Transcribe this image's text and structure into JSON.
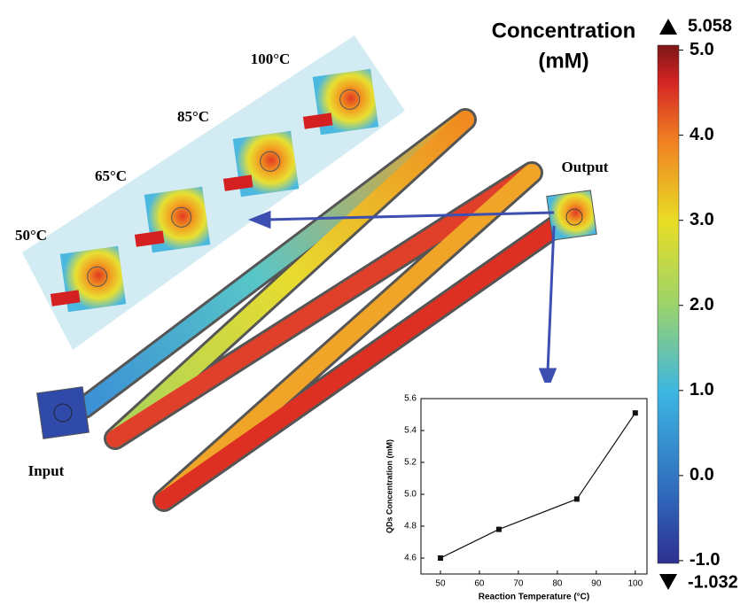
{
  "labels": {
    "temperatures": [
      "100°C",
      "85°C",
      "65°C",
      "50°C"
    ],
    "output": "Output",
    "input": "Input"
  },
  "colorbar": {
    "title": [
      "Concentration",
      "(mM)"
    ],
    "range": [
      -1.032,
      5.058
    ],
    "ticks": [
      {
        "value": 5,
        "label": "5.0"
      },
      {
        "value": 4,
        "label": "4.0"
      },
      {
        "value": 3,
        "label": "3.0"
      },
      {
        "value": 2,
        "label": "2.0"
      },
      {
        "value": 1,
        "label": "1.0"
      },
      {
        "value": 0,
        "label": "0.0"
      },
      {
        "value": -1,
        "label": "-1.0"
      }
    ]
  },
  "chart_data": {
    "type": "line",
    "x": [
      50,
      65,
      85,
      100
    ],
    "values": [
      4.6,
      4.78,
      4.97,
      5.51
    ],
    "color": "#111111",
    "xlabel": "Reaction Temperature (°C)",
    "ylabel": "QDs Concentration (mM)",
    "xlim": [
      45,
      103
    ],
    "ylim": [
      4.5,
      5.6
    ],
    "xticks": [
      50,
      60,
      70,
      80,
      90,
      100
    ],
    "yticks": [
      4.6,
      4.8,
      {
        "value": 5,
        "label": "5.0"
      },
      5.2,
      5.4,
      5.6
    ]
  }
}
